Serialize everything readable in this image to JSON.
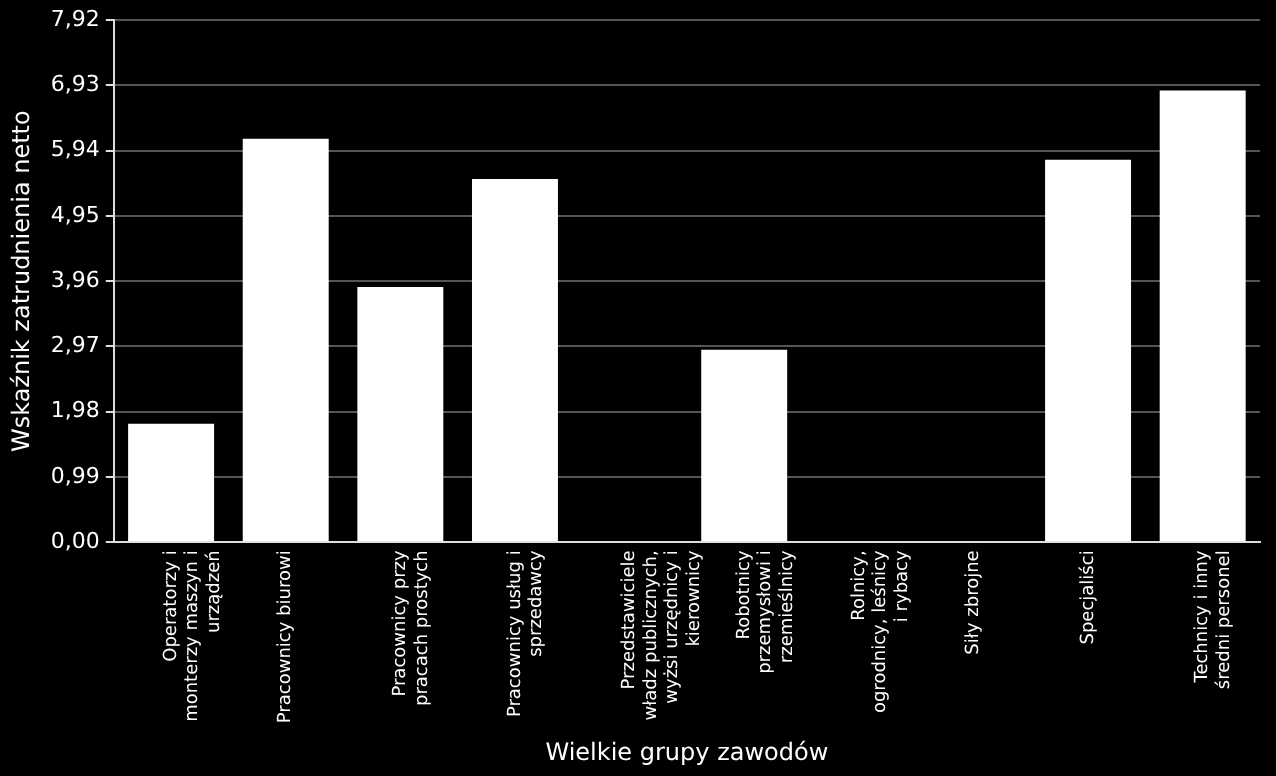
{
  "chart_data": {
    "type": "bar",
    "xlabel": "Wielkie grupy zawodów",
    "ylabel": "Wskaźnik zatrudnienia netto",
    "categories": [
      "Operatorzy i monterzy maszyn i urządzeń",
      "Pracownicy biurowi",
      "Pracownicy przy pracach prostych",
      "Pracownicy usług i sprzedawcy",
      "Przedstawiciele władz publicznych, wyżsi urzędnicy i kierownicy",
      "Robotnicy przemysłowi i rzemieślnicy",
      "Rolnicy, ogrodnicy, leśnicy i rybacy",
      "Siły zbrojne",
      "Specjaliści",
      "Technicy i inny średni personel"
    ],
    "values": [
      1.8,
      6.12,
      3.87,
      5.51,
      0,
      2.92,
      0,
      0,
      5.8,
      6.85
    ],
    "color": "#ffffff",
    "ylim": [
      0,
      7.92
    ],
    "yticks": [
      {
        "value": 0,
        "label": "0,00"
      },
      {
        "value": 0.99,
        "label": "0,99"
      },
      {
        "value": 1.98,
        "label": "1,98"
      },
      {
        "value": 2.97,
        "label": "2,97"
      },
      {
        "value": 3.96,
        "label": "3,96"
      },
      {
        "value": 4.95,
        "label": "4,95"
      },
      {
        "value": 5.94,
        "label": "5,94"
      },
      {
        "value": 6.93,
        "label": "6,93"
      },
      {
        "value": 7.92,
        "label": "7,92"
      }
    ],
    "grid": "y",
    "legend": false
  }
}
